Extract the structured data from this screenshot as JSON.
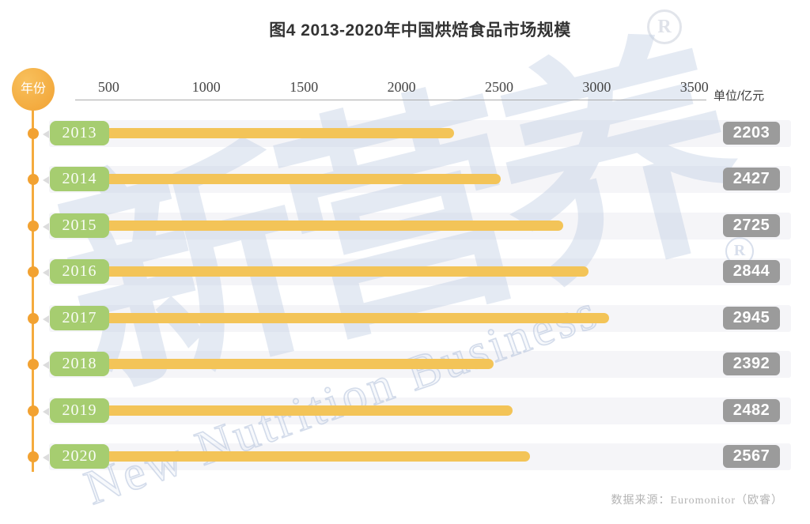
{
  "header": {
    "title": "图4 2013-2020年中国烘焙食品市场规模",
    "registered_mark": "R"
  },
  "axis": {
    "y_axis_label": "年份",
    "unit_label": "单位/亿元",
    "ticks": [
      "500",
      "1000",
      "1500",
      "2000",
      "2500",
      "3000",
      "3500"
    ]
  },
  "watermark": {
    "cn": "新营养",
    "en": "New Nutrition Business",
    "registered_mark": "R"
  },
  "footer": {
    "source": "数据来源：Euromonitor（欧睿）"
  },
  "colors": {
    "accent_orange": "#F2A232",
    "badge_green": "#A6CD70",
    "bar_yellow": "#F3C458",
    "value_badge_gray": "#9B9B9B",
    "row_stripe": "#F5F5F8",
    "watermark_blue": "#BECCE3",
    "title_text": "#333333"
  },
  "chart_data": {
    "type": "bar",
    "orientation": "horizontal",
    "title": "图4 2013-2020年中国烘焙食品市场规模",
    "categories": [
      "2013",
      "2014",
      "2015",
      "2016",
      "2017",
      "2018",
      "2019",
      "2020"
    ],
    "values": [
      2203,
      2427,
      2725,
      2844,
      2945,
      2392,
      2482,
      2567
    ],
    "x_ticks": [
      500,
      1000,
      1500,
      2000,
      2500,
      3000,
      3500
    ],
    "xlim": [
      0,
      3500
    ],
    "xlabel": "单位/亿元",
    "ylabel": "年份",
    "unit": "亿元",
    "grid": false,
    "value_labels": true,
    "source": "数据来源：Euromonitor（欧睿）"
  }
}
